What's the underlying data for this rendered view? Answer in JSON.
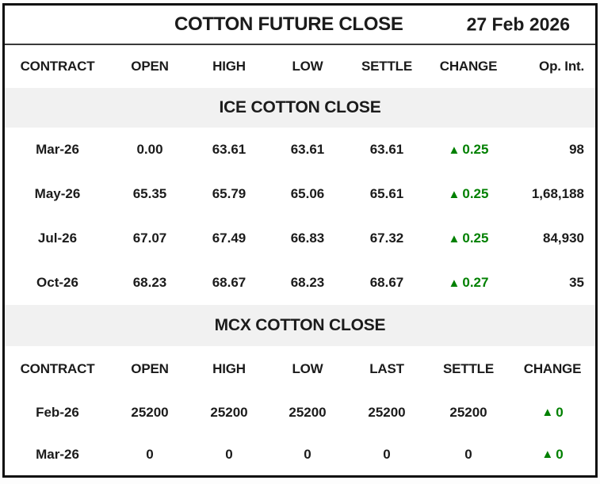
{
  "header": {
    "title": "COTTON FUTURE CLOSE",
    "date": "27 Feb 2026"
  },
  "symbols": {
    "up": "▲"
  },
  "colors": {
    "up_green": "#008000",
    "band_bg": "#f1f1f1",
    "border": "#0e0e0e"
  },
  "ice": {
    "section_title": "ICE COTTON CLOSE",
    "columns": {
      "contract": "CONTRACT",
      "open": "OPEN",
      "high": "HIGH",
      "low": "LOW",
      "settle": "SETTLE",
      "change": "CHANGE",
      "op_int": "Op. Int."
    },
    "rows": [
      {
        "contract": "Mar-26",
        "open": "0.00",
        "high": "63.61",
        "low": "63.61",
        "settle": "63.61",
        "change": "0.25",
        "change_dir": "up",
        "op_int": "98"
      },
      {
        "contract": "May-26",
        "open": "65.35",
        "high": "65.79",
        "low": "65.06",
        "settle": "65.61",
        "change": "0.25",
        "change_dir": "up",
        "op_int": "1,68,188"
      },
      {
        "contract": "Jul-26",
        "open": "67.07",
        "high": "67.49",
        "low": "66.83",
        "settle": "67.32",
        "change": "0.25",
        "change_dir": "up",
        "op_int": "84,930"
      },
      {
        "contract": "Oct-26",
        "open": "68.23",
        "high": "68.67",
        "low": "68.23",
        "settle": "68.67",
        "change": "0.27",
        "change_dir": "up",
        "op_int": "35"
      }
    ]
  },
  "mcx": {
    "section_title": "MCX COTTON CLOSE",
    "columns": {
      "contract": "CONTRACT",
      "open": "OPEN",
      "high": "HIGH",
      "low": "LOW",
      "last": "LAST",
      "settle": "SETTLE",
      "change": "CHANGE"
    },
    "rows": [
      {
        "contract": "Feb-26",
        "open": "25200",
        "high": "25200",
        "low": "25200",
        "last": "25200",
        "settle": "25200",
        "change": "0",
        "change_dir": "up"
      },
      {
        "contract": "Mar-26",
        "open": "0",
        "high": "0",
        "low": "0",
        "last": "0",
        "settle": "0",
        "change": "0",
        "change_dir": "up"
      }
    ]
  },
  "chart_data": [
    {
      "type": "table",
      "title": "ICE COTTON CLOSE",
      "columns": [
        "CONTRACT",
        "OPEN",
        "HIGH",
        "LOW",
        "SETTLE",
        "CHANGE",
        "Op. Int."
      ],
      "rows": [
        [
          "Mar-26",
          "0.00",
          "63.61",
          "63.61",
          "63.61",
          "▲0.25",
          "98"
        ],
        [
          "May-26",
          "65.35",
          "65.79",
          "65.06",
          "65.61",
          "▲0.25",
          "1,68,188"
        ],
        [
          "Jul-26",
          "67.07",
          "67.49",
          "66.83",
          "67.32",
          "▲0.25",
          "84,930"
        ],
        [
          "Oct-26",
          "68.23",
          "68.67",
          "68.23",
          "68.67",
          "▲0.27",
          "35"
        ]
      ]
    },
    {
      "type": "table",
      "title": "MCX COTTON CLOSE",
      "columns": [
        "CONTRACT",
        "OPEN",
        "HIGH",
        "LOW",
        "LAST",
        "SETTLE",
        "CHANGE"
      ],
      "rows": [
        [
          "Feb-26",
          "25200",
          "25200",
          "25200",
          "25200",
          "25200",
          "▲0"
        ],
        [
          "Mar-26",
          "0",
          "0",
          "0",
          "0",
          "0",
          "▲0"
        ]
      ]
    }
  ]
}
